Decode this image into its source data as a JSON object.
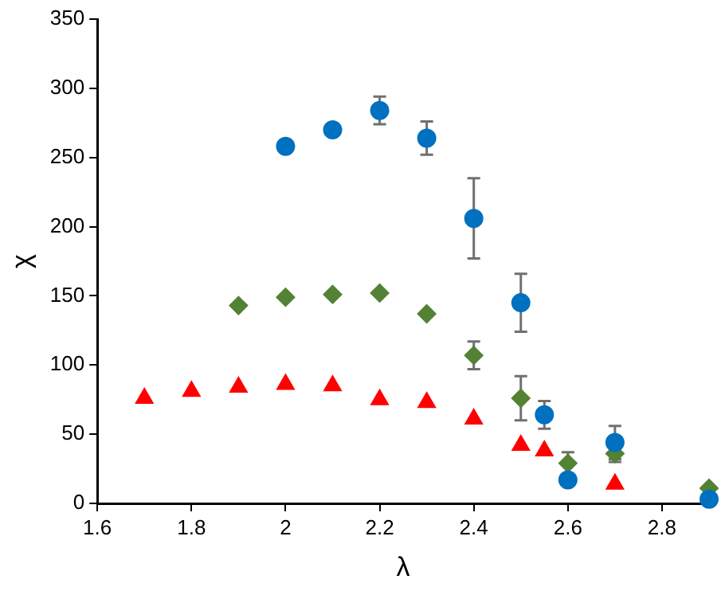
{
  "chart_data": {
    "type": "scatter",
    "xlabel": "λ",
    "ylabel": "χ",
    "xlim": [
      1.6,
      2.9
    ],
    "xticks": [
      {
        "value": 1.6,
        "label": "1.6"
      },
      {
        "value": 1.8,
        "label": "1.8"
      },
      {
        "value": 2,
        "label": "2"
      },
      {
        "value": 2.2,
        "label": "2.2"
      },
      {
        "value": 2.4,
        "label": "2.4"
      },
      {
        "value": 2.6,
        "label": "2.6"
      },
      {
        "value": 2.8,
        "label": "2.8"
      }
    ],
    "ylim": [
      0,
      350
    ],
    "yticks": [
      0,
      50,
      100,
      150,
      200,
      250,
      300,
      350
    ],
    "grid": false,
    "legend": false,
    "series": [
      {
        "color": "#0070c0",
        "marker": "circle",
        "x": [
          2.0,
          2.1,
          2.2,
          2.3,
          2.4,
          2.5,
          2.55,
          2.6,
          2.7,
          2.9
        ],
        "values": [
          258,
          270,
          284,
          264,
          206,
          145,
          64,
          17,
          44,
          3
        ],
        "errors": [
          null,
          null,
          10,
          12,
          29,
          21,
          10,
          null,
          12,
          null
        ]
      },
      {
        "color": "#548235",
        "marker": "diamond",
        "x": [
          1.9,
          2.0,
          2.1,
          2.2,
          2.3,
          2.4,
          2.5,
          2.6,
          2.7,
          2.9
        ],
        "values": [
          143,
          149,
          151,
          152,
          137,
          107,
          76,
          29,
          36,
          11
        ],
        "errors": [
          null,
          null,
          null,
          null,
          null,
          10,
          16,
          8,
          6,
          null
        ]
      },
      {
        "color": "#ff0000",
        "marker": "triangle",
        "x": [
          1.7,
          1.8,
          1.9,
          2.0,
          2.1,
          2.2,
          2.3,
          2.4,
          2.5,
          2.55,
          2.6,
          2.7
        ],
        "values": [
          76,
          81,
          84,
          86,
          85,
          75,
          73,
          61,
          42,
          38,
          null,
          14
        ]
      }
    ]
  }
}
